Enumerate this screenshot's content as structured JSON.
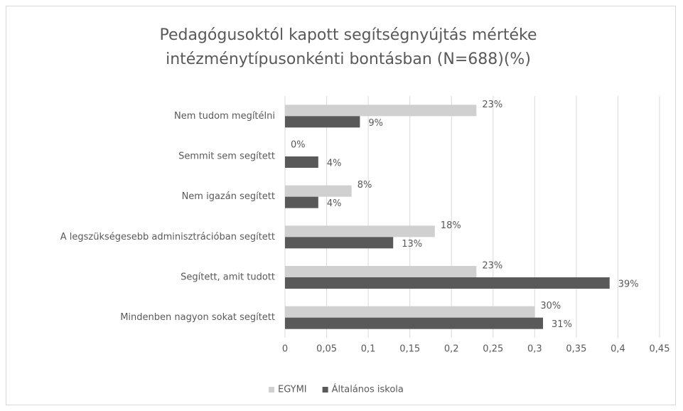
{
  "chart_data": {
    "type": "bar",
    "orientation": "horizontal",
    "title": [
      "Pedagógusoktól kapott segítségnyújtás mértéke",
      "intézménytípusonkénti bontásban (N=688)(%)"
    ],
    "categories": [
      "Nem tudom megítélni",
      "Semmit sem segített",
      "Nem igazán segített",
      "A legszükségesebb adminisztrációban segített",
      "Segített, amit tudott",
      "Mindenben nagyon sokat segített"
    ],
    "series": [
      {
        "name": "EGYMI",
        "color": "#d0d0d0",
        "values": [
          0.23,
          0,
          0.08,
          0.18,
          0.23,
          0.3
        ],
        "value_labels": [
          "23%",
          "0%",
          "8%",
          "18%",
          "23%",
          "30%"
        ]
      },
      {
        "name": "Általános iskola",
        "color": "#595959",
        "values": [
          0.09,
          0.04,
          0.04,
          0.13,
          0.39,
          0.31
        ],
        "value_labels": [
          "9%",
          "4%",
          "4%",
          "13%",
          "39%",
          "31%"
        ]
      }
    ],
    "xlim": [
      0,
      0.45
    ],
    "xticks": [
      0,
      {
        "value": 0.05,
        "label": "0,05"
      },
      {
        "value": 0.1,
        "label": "0,1"
      },
      {
        "value": 0.15,
        "label": "0,15"
      },
      {
        "value": 0.2,
        "label": "0,2"
      },
      {
        "value": 0.25,
        "label": "0,25"
      },
      {
        "value": 0.3,
        "label": "0,3"
      },
      {
        "value": 0.35,
        "label": "0,35"
      },
      {
        "value": 0.4,
        "label": "0,4"
      },
      {
        "value": 0.45,
        "label": "0,45"
      }
    ],
    "grid": true,
    "legend": "bottom"
  }
}
